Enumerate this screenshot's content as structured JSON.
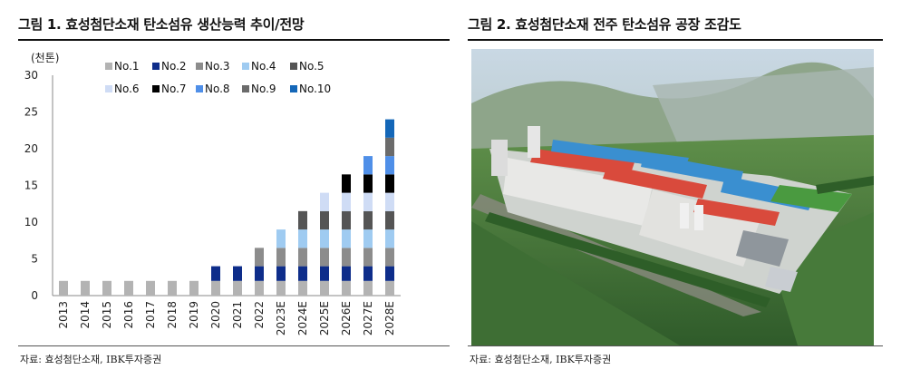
{
  "figure1": {
    "title": "그림 1. 효성첨단소재 탄소섬유 생산능력 추이/전망",
    "source": "자료: 효성첨단소재, IBK투자증권"
  },
  "figure2": {
    "title": "그림 2. 효성첨단소재 전주 탄소섬유 공장 조감도",
    "source": "자료: 효성첨단소재, IBK투자증권"
  },
  "chart_data": {
    "type": "bar",
    "stacked": true,
    "title": "",
    "xlabel": "",
    "ylabel": "(천톤)",
    "ylim": [
      0,
      30
    ],
    "yticks": [
      0,
      5,
      10,
      15,
      20,
      25,
      30
    ],
    "grid": false,
    "legend_position": "top",
    "categories": [
      "2013",
      "2014",
      "2015",
      "2016",
      "2017",
      "2018",
      "2019",
      "2020",
      "2021",
      "2022",
      "2023E",
      "2024E",
      "2025E",
      "2026E",
      "2027E",
      "2028E"
    ],
    "series": [
      {
        "name": "No.1",
        "color": "#b3b3b3",
        "values": [
          2,
          2,
          2,
          2,
          2,
          2,
          2,
          2,
          2,
          2,
          2,
          2,
          2,
          2,
          2,
          2
        ]
      },
      {
        "name": "No.2",
        "color": "#0e2d8a",
        "values": [
          0,
          0,
          0,
          0,
          0,
          0,
          0,
          2,
          2,
          2,
          2,
          2,
          2,
          2,
          2,
          2
        ]
      },
      {
        "name": "No.3",
        "color": "#8c8c8c",
        "values": [
          0,
          0,
          0,
          0,
          0,
          0,
          0,
          0,
          0,
          2.5,
          2.5,
          2.5,
          2.5,
          2.5,
          2.5,
          2.5
        ]
      },
      {
        "name": "No.4",
        "color": "#9fcbf1",
        "values": [
          0,
          0,
          0,
          0,
          0,
          0,
          0,
          0,
          0,
          0,
          2.5,
          2.5,
          2.5,
          2.5,
          2.5,
          2.5
        ]
      },
      {
        "name": "No.5",
        "color": "#555555",
        "values": [
          0,
          0,
          0,
          0,
          0,
          0,
          0,
          0,
          0,
          0,
          0,
          2.5,
          2.5,
          2.5,
          2.5,
          2.5
        ]
      },
      {
        "name": "No.6",
        "color": "#cfdcf5",
        "values": [
          0,
          0,
          0,
          0,
          0,
          0,
          0,
          0,
          0,
          0,
          0,
          0,
          2.5,
          2.5,
          2.5,
          2.5
        ]
      },
      {
        "name": "No.7",
        "color": "#000000",
        "values": [
          0,
          0,
          0,
          0,
          0,
          0,
          0,
          0,
          0,
          0,
          0,
          0,
          0,
          2.5,
          2.5,
          2.5
        ]
      },
      {
        "name": "No.8",
        "color": "#4f8fe8",
        "values": [
          0,
          0,
          0,
          0,
          0,
          0,
          0,
          0,
          0,
          0,
          0,
          0,
          0,
          0,
          2.5,
          2.5
        ]
      },
      {
        "name": "No.9",
        "color": "#6b6b6b",
        "values": [
          0,
          0,
          0,
          0,
          0,
          0,
          0,
          0,
          0,
          0,
          0,
          0,
          0,
          0,
          0,
          2.5
        ]
      },
      {
        "name": "No.10",
        "color": "#1467b8",
        "values": [
          0,
          0,
          0,
          0,
          0,
          0,
          0,
          0,
          0,
          0,
          0,
          0,
          0,
          0,
          0,
          2.5
        ]
      }
    ]
  }
}
